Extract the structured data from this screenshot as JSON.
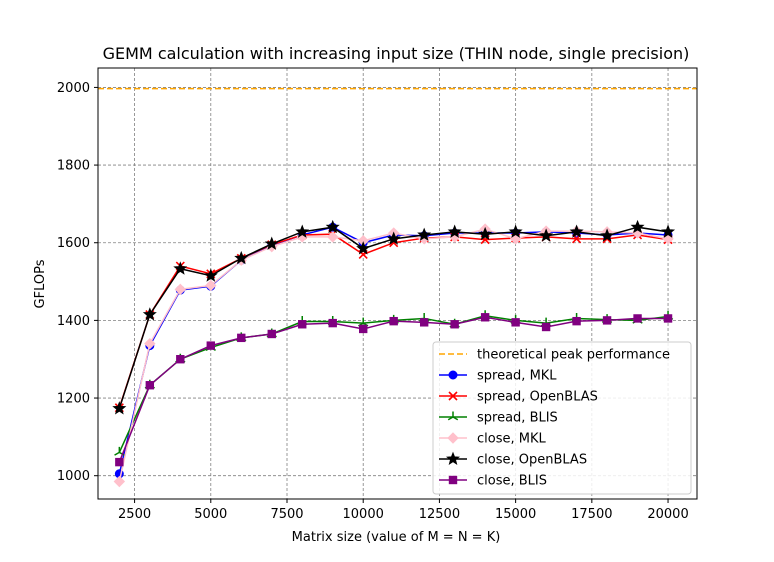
{
  "chart_data": {
    "type": "line",
    "title": "GEMM calculation with increasing input size (THIN node, single precision)",
    "xlabel": "Matrix size (value of M = N = K)",
    "ylabel": "GFLOPs",
    "xlim": [
      1300,
      20950
    ],
    "ylim": [
      940,
      2050
    ],
    "xticks": [
      2500,
      5000,
      7500,
      10000,
      12500,
      15000,
      17500,
      20000
    ],
    "xtick_labels": [
      "2500",
      "5000",
      "7500",
      "10000",
      "12500",
      "15000",
      "17500",
      "20000"
    ],
    "yticks": [
      1000,
      1200,
      1400,
      1600,
      1800,
      2000
    ],
    "ytick_labels": [
      "1000",
      "1200",
      "1400",
      "1600",
      "1800",
      "2000"
    ],
    "grid": true,
    "legend_position": "lower-right",
    "x": [
      2000,
      3000,
      4000,
      5000,
      6000,
      7000,
      8000,
      9000,
      10000,
      11000,
      12000,
      13000,
      14000,
      15000,
      16000,
      17000,
      18000,
      19000,
      20000
    ],
    "reference_line": {
      "name": "theoretical peak performance",
      "value": 1996.8,
      "color": "#ffa500"
    },
    "series": [
      {
        "name": "spread, MKL",
        "color": "#0000ff",
        "marker": "circle",
        "values": [
          1005,
          1335,
          1478,
          1488,
          1555,
          1593,
          1620,
          1640,
          1600,
          1620,
          1618,
          1625,
          1625,
          1625,
          1628,
          1625,
          1620,
          1625,
          1620
        ]
      },
      {
        "name": "spread, OpenBLAS",
        "color": "#ff0000",
        "marker": "x",
        "values": [
          1175,
          1415,
          1540,
          1520,
          1560,
          1595,
          1620,
          1622,
          1570,
          1600,
          1612,
          1615,
          1608,
          1612,
          1615,
          1610,
          1610,
          1620,
          1608
        ]
      },
      {
        "name": "spread, BLIS",
        "color": "#008000",
        "marker": "tri",
        "values": [
          1060,
          1233,
          1300,
          1330,
          1355,
          1365,
          1397,
          1397,
          1393,
          1400,
          1405,
          1390,
          1412,
          1400,
          1393,
          1405,
          1402,
          1400,
          1410
        ]
      },
      {
        "name": "close, MKL",
        "color": "#ffc0cb",
        "marker": "diamond",
        "values": [
          985,
          1340,
          1480,
          1490,
          1555,
          1590,
          1615,
          1615,
          1605,
          1625,
          1610,
          1615,
          1635,
          1610,
          1630,
          1630,
          1628,
          1625,
          1610
        ]
      },
      {
        "name": "close, OpenBLAS",
        "color": "#000000",
        "marker": "star",
        "values": [
          1173,
          1415,
          1533,
          1515,
          1560,
          1597,
          1628,
          1640,
          1585,
          1610,
          1620,
          1628,
          1622,
          1628,
          1618,
          1628,
          1618,
          1640,
          1628
        ]
      },
      {
        "name": "close, BLIS",
        "color": "#800080",
        "marker": "square",
        "values": [
          1035,
          1233,
          1300,
          1335,
          1355,
          1365,
          1390,
          1393,
          1378,
          1398,
          1395,
          1390,
          1408,
          1395,
          1383,
          1398,
          1400,
          1405,
          1405
        ]
      }
    ]
  }
}
